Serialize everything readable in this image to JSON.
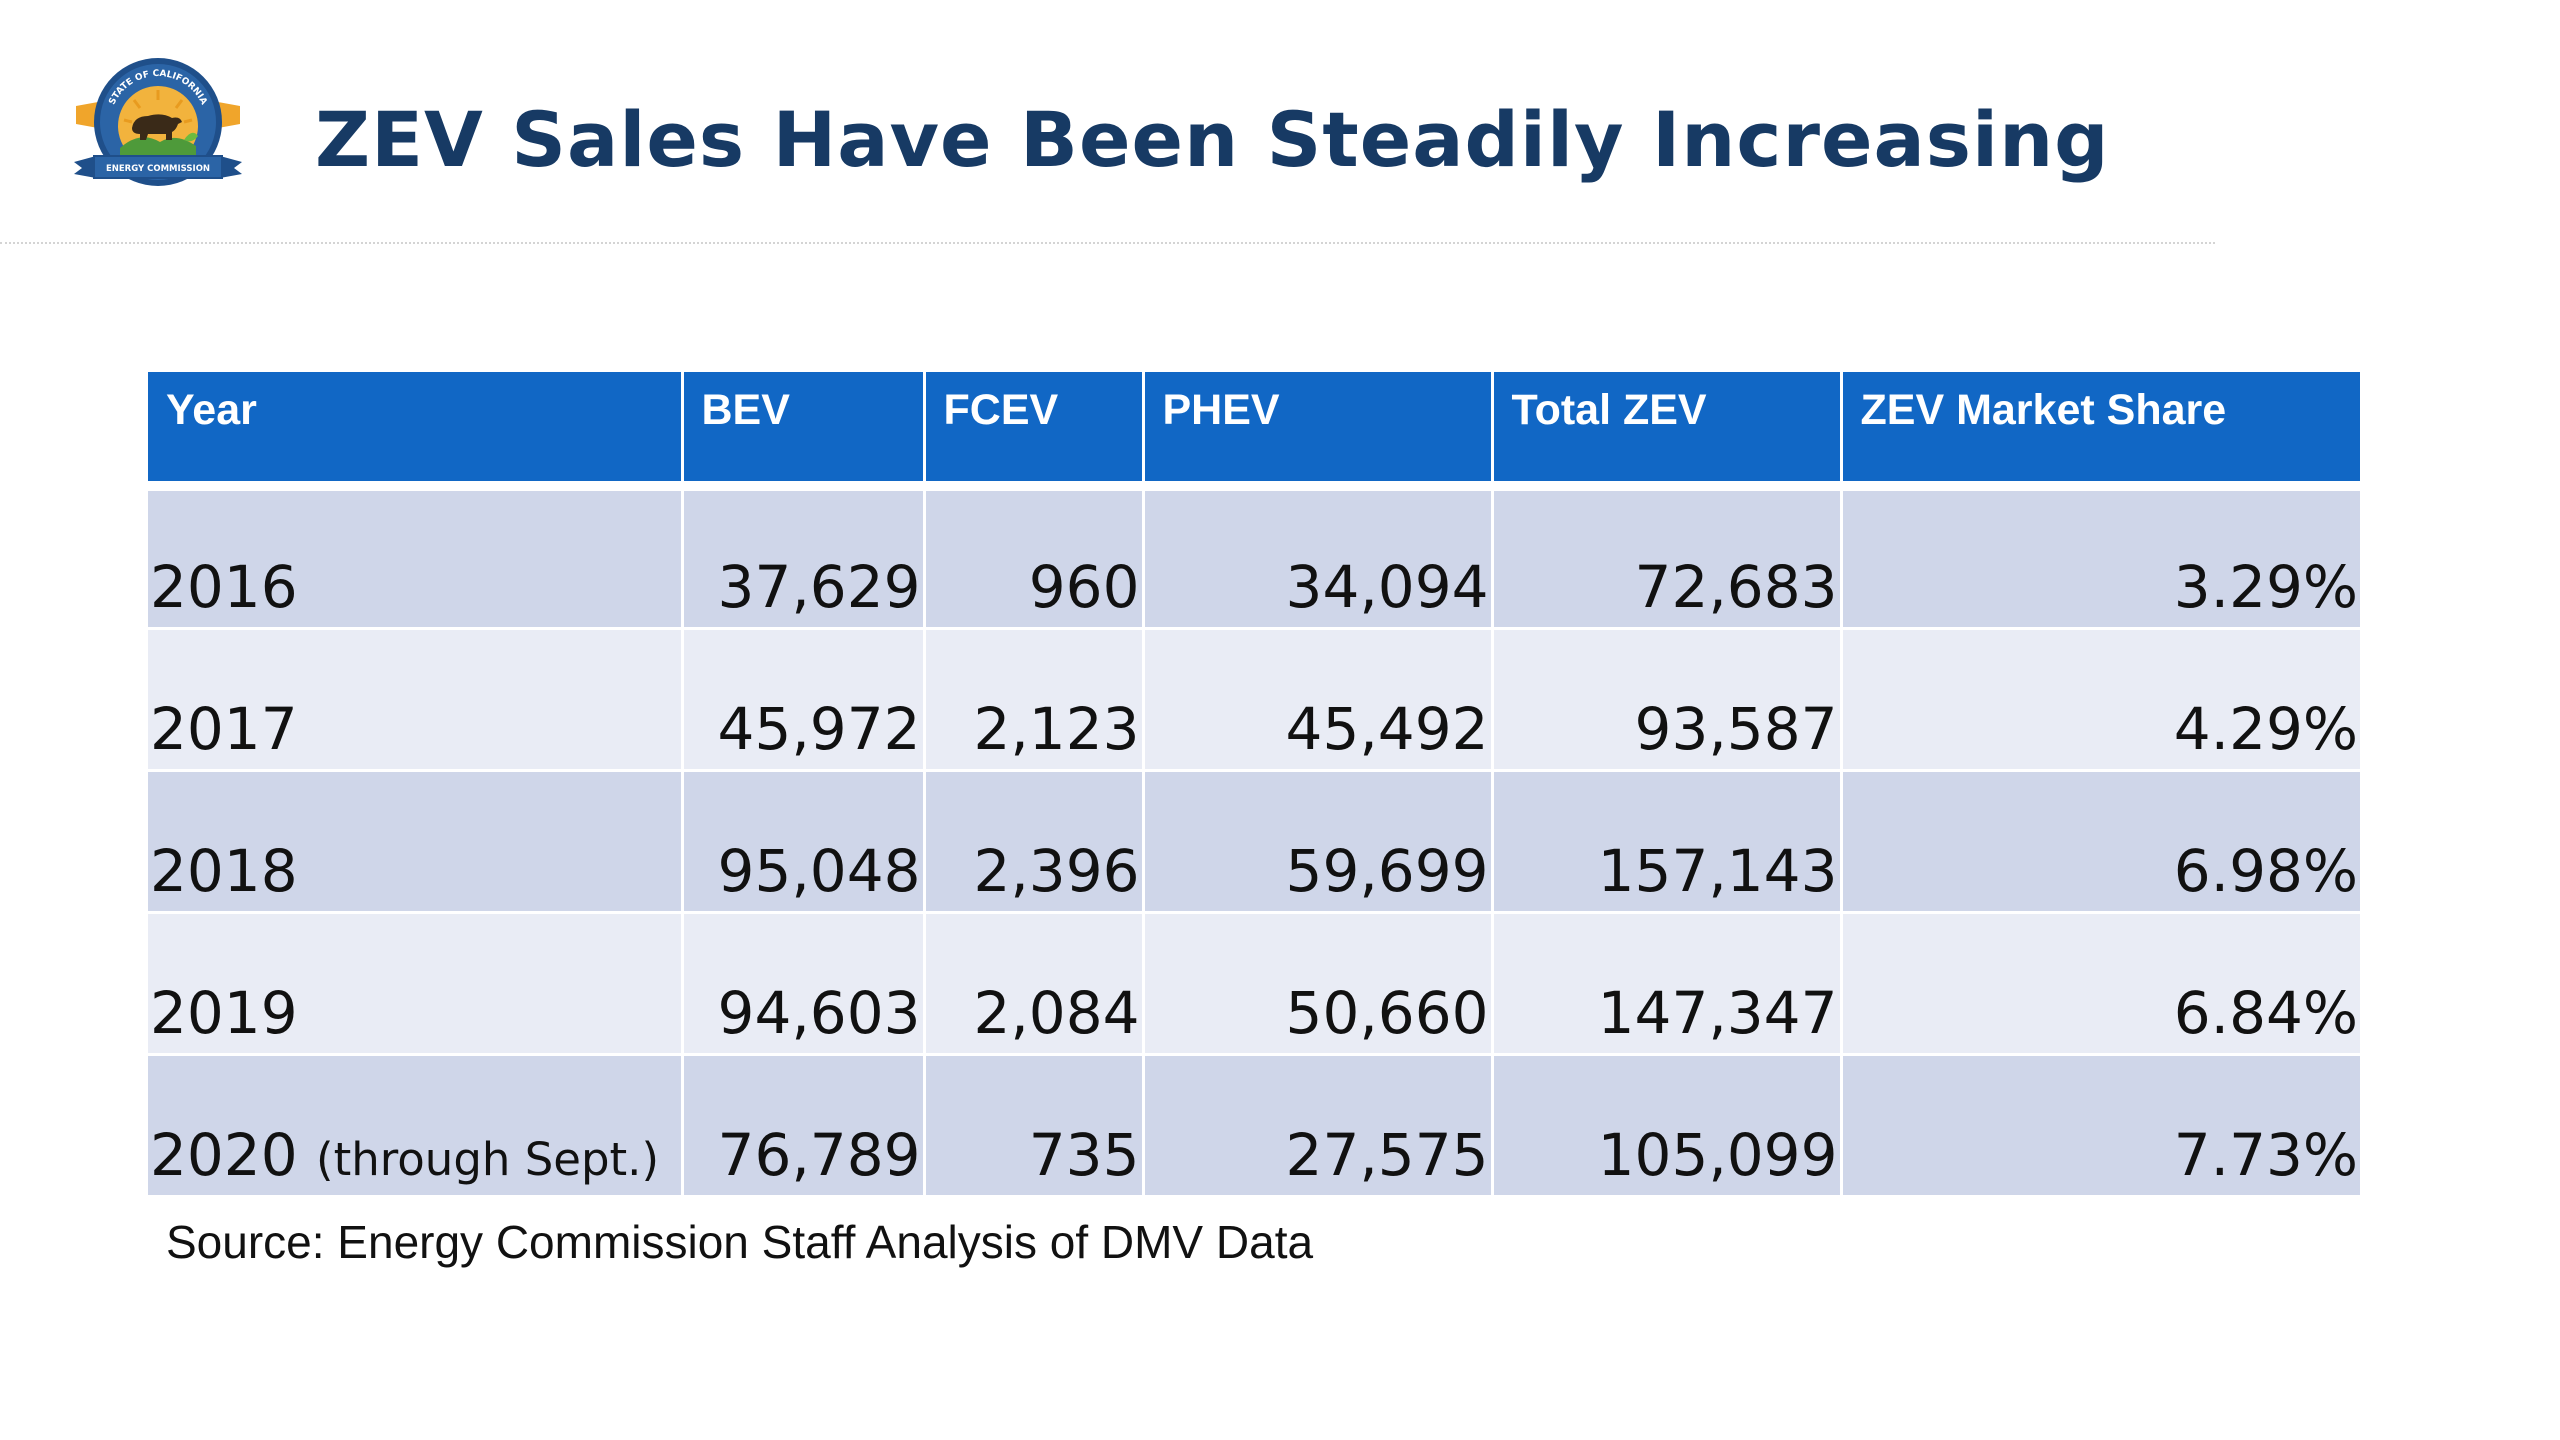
{
  "slide": {
    "title": "ZEV Sales Have Been Steadily Increasing",
    "logo": {
      "icon": "state-seal-icon",
      "arc_text": "STATE OF CALIFORNIA",
      "banner_text": "ENERGY COMMISSION"
    },
    "source": "Source: Energy Commission Staff Analysis of DMV Data"
  },
  "table": {
    "headers": [
      "Year",
      "BEV",
      "FCEV",
      "PHEV",
      "Total ZEV",
      "ZEV Market Share"
    ],
    "rows": [
      {
        "year": "2016",
        "note": "",
        "bev": "37,629",
        "fcev": "960",
        "phev": "34,094",
        "total": "72,683",
        "share": "3.29%"
      },
      {
        "year": "2017",
        "note": "",
        "bev": "45,972",
        "fcev": "2,123",
        "phev": "45,492",
        "total": "93,587",
        "share": "4.29%"
      },
      {
        "year": "2018",
        "note": "",
        "bev": "95,048",
        "fcev": "2,396",
        "phev": "59,699",
        "total": "157,143",
        "share": "6.98%"
      },
      {
        "year": "2019",
        "note": "",
        "bev": "94,603",
        "fcev": "2,084",
        "phev": "50,660",
        "total": "147,347",
        "share": "6.84%"
      },
      {
        "year": "2020",
        "note": "(through Sept.)",
        "bev": "76,789",
        "fcev": "735",
        "phev": "27,575",
        "total": "105,099",
        "share": "7.73%"
      }
    ]
  },
  "colors": {
    "title": "#173a64",
    "header_bg": "#1167c5",
    "row_odd": "#cfd6e9",
    "row_even": "#e9ecf5",
    "seal_blue": "#1f4f8a",
    "seal_gold": "#f2b33d"
  }
}
